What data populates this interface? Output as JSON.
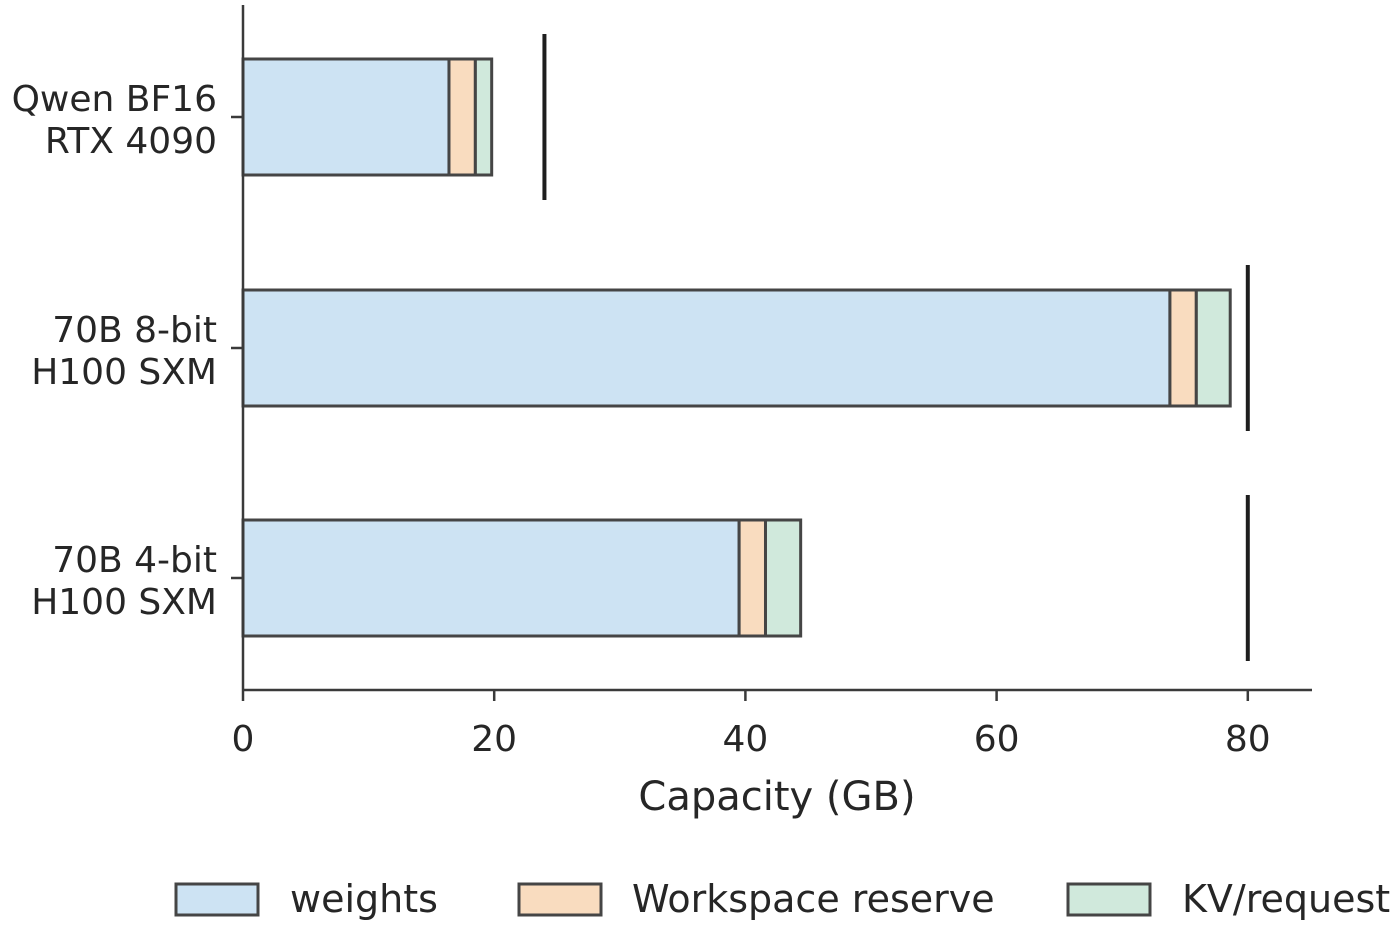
{
  "chart_data": {
    "type": "bar",
    "orientation": "horizontal",
    "stacked": true,
    "categories": [
      "Qwen BF16\nRTX 4090",
      "70B 8-bit\nH100 SXM",
      "70B 4-bit\nH100 SXM"
    ],
    "series": [
      {
        "name": "weights",
        "color": "#cde3f3",
        "values": [
          16.4,
          73.8,
          39.5
        ]
      },
      {
        "name": "Workspace reserve",
        "color": "#f9dcbf",
        "values": [
          2.1,
          2.1,
          2.1
        ]
      },
      {
        "name": "KV/request",
        "color": "#d0e9dc",
        "values": [
          1.3,
          2.7,
          2.8
        ]
      }
    ],
    "capacity_markers": [
      24,
      80,
      80
    ],
    "xlabel": "Capacity (GB)",
    "xlim": [
      0,
      85
    ],
    "xticks": [
      0,
      20,
      40,
      60,
      80
    ],
    "xtick_labels": [
      "0",
      "20",
      "40",
      "60",
      "80"
    ],
    "grid": false,
    "legend_position": "bottom"
  }
}
